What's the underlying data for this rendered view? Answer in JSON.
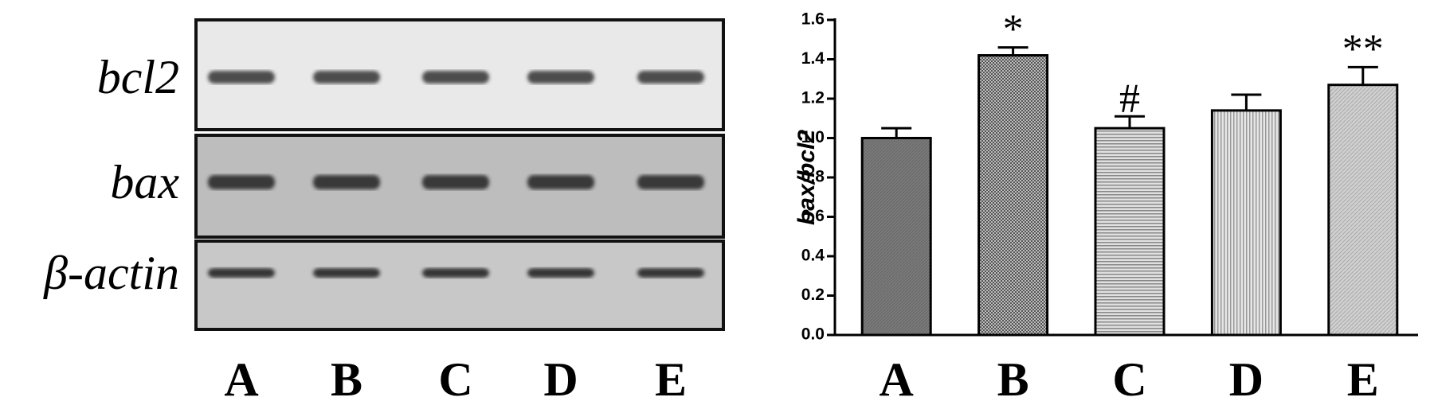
{
  "blot": {
    "rows": [
      "bcl2",
      "bax",
      "β-actin"
    ],
    "lanes": [
      "A",
      "B",
      "C",
      "D",
      "E"
    ]
  },
  "chart_data": {
    "type": "bar",
    "y_label": "bax/bcl2",
    "categories": [
      "A",
      "B",
      "C",
      "D",
      "E"
    ],
    "series": [
      {
        "values": [
          1.0,
          1.42,
          1.05,
          1.14,
          1.27
        ],
        "errors": [
          0.05,
          0.04,
          0.06,
          0.08,
          0.09
        ],
        "annotations": [
          null,
          "*",
          "#",
          null,
          "**"
        ]
      }
    ],
    "ylim": [
      0,
      1.6
    ],
    "yticks": [
      {
        "value": 0,
        "label": "0.0"
      },
      0.2,
      0.4,
      0.6,
      0.8,
      {
        "value": 1,
        "label": "1.0"
      },
      1.2,
      1.4,
      1.6
    ]
  }
}
